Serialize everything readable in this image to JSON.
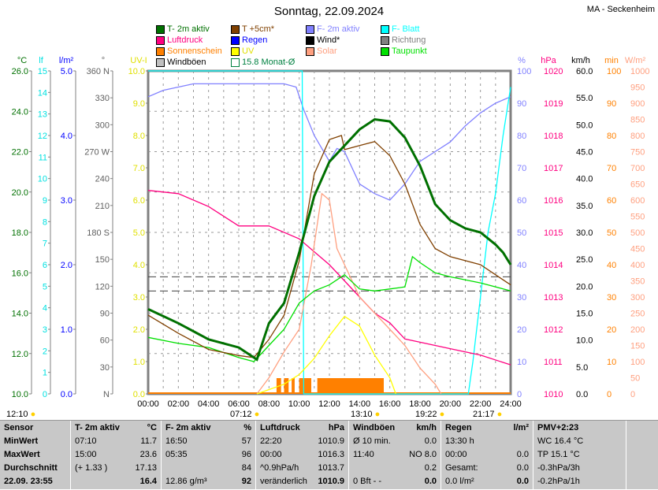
{
  "header": {
    "title": "Sonntag, 22.09.2024",
    "station": "MA - Seckenheim"
  },
  "legend": [
    {
      "label": "T- 2m aktiv",
      "color": "#007000"
    },
    {
      "label": "T +5cm*",
      "color": "#804000"
    },
    {
      "label": "F- 2m aktiv",
      "color": "#8080ff"
    },
    {
      "label": "F- Blatt",
      "color": "#00ffff"
    },
    {
      "label": "Luftdruck",
      "color": "#ff0080"
    },
    {
      "label": "Regen",
      "color": "#0000ff"
    },
    {
      "label": "Wind*",
      "color": "#000000"
    },
    {
      "label": "Richtung",
      "color": "#808080"
    },
    {
      "label": "Sonnenschein",
      "color": "#ff8000"
    },
    {
      "label": "UV",
      "color": "#ffff00"
    },
    {
      "label": "Solar",
      "color": "#ffa080"
    },
    {
      "label": "Taupunkt",
      "color": "#00e000"
    },
    {
      "label": "Windböen",
      "color": "#c0c0c0"
    },
    {
      "label": "15.8 Monat-Ø",
      "color": "#008040"
    }
  ],
  "chart_data": {
    "type": "line",
    "title": "Sonntag, 22.09.2024",
    "xlabel": "",
    "xlim": [
      0,
      24
    ],
    "xticks": [
      "00:00",
      "02:00",
      "04:00",
      "06:00",
      "08:00",
      "10:00",
      "12:00",
      "14:00",
      "16:00",
      "18:00",
      "20:00",
      "22:00",
      "24:00"
    ],
    "axes": [
      {
        "unit": "°C",
        "color": "#007000",
        "min": 10,
        "max": 26,
        "ticks": [
          "10.0",
          "12.0",
          "14.0",
          "16.0",
          "18.0",
          "20.0",
          "22.0",
          "24.0",
          "26.0"
        ]
      },
      {
        "unit": "lf",
        "color": "#00e0e0",
        "min": 0,
        "max": 15,
        "ticks": [
          "0",
          "1",
          "2",
          "3",
          "4",
          "5",
          "6",
          "7",
          "8",
          "9",
          "10",
          "11",
          "12",
          "13",
          "14",
          "15"
        ]
      },
      {
        "unit": "l/m²",
        "color": "#0000ff",
        "min": 0,
        "max": 5,
        "ticks": [
          "0.0",
          "1.0",
          "2.0",
          "3.0",
          "4.0",
          "5.0"
        ]
      },
      {
        "unit": "°",
        "color": "#606060",
        "min": 0,
        "max": 360,
        "ticks": [
          "0",
          "N",
          "30",
          "60",
          "90",
          "120",
          "150",
          "180 S",
          "210",
          "240",
          "270 W",
          "300",
          "330",
          "360 N"
        ]
      },
      {
        "unit": "UV-I",
        "color": "#e0e000",
        "min": 0,
        "max": 10,
        "ticks": [
          "0.0",
          "1.0",
          "2.0",
          "3.0",
          "4.0",
          "5.0",
          "6.0",
          "7.0",
          "8.0",
          "9.0",
          "10.0"
        ]
      },
      {
        "unit": "%",
        "color": "#8080ff",
        "min": 0,
        "max": 100,
        "ticks": [
          "0",
          "10",
          "20",
          "30",
          "40",
          "50",
          "60",
          "70",
          "80",
          "90",
          "100"
        ]
      },
      {
        "unit": "hPa",
        "color": "#ff0080",
        "min": 1010,
        "max": 1020,
        "ticks": [
          "1010",
          "1011",
          "1012",
          "1013",
          "1014",
          "1015",
          "1016",
          "1017",
          "1018",
          "1019",
          "1020"
        ]
      },
      {
        "unit": "km/h",
        "color": "#000000",
        "min": 0,
        "max": 60,
        "ticks": [
          "0.0",
          "5.0",
          "10.0",
          "15.0",
          "20.0",
          "25.0",
          "30.0",
          "35.0",
          "40.0",
          "45.0",
          "50.0",
          "55.0",
          "60.0"
        ]
      },
      {
        "unit": "min",
        "color": "#ff8000",
        "min": 0,
        "max": 100,
        "ticks": [
          "0",
          "10",
          "20",
          "30",
          "40",
          "50",
          "60",
          "70",
          "80",
          "90",
          "100"
        ]
      },
      {
        "unit": "W/m²",
        "color": "#ffa080",
        "min": 0,
        "max": 1000,
        "ticks": [
          "0",
          "50",
          "100",
          "150",
          "200",
          "250",
          "300",
          "350",
          "400",
          "450",
          "500",
          "550",
          "600",
          "650",
          "700",
          "750",
          "800",
          "850",
          "900",
          "950",
          "1000"
        ]
      }
    ],
    "series": [
      {
        "name": "F- 2m aktiv",
        "axis": 5,
        "color": "#8080ff",
        "x": [
          0,
          1,
          3,
          6,
          9,
          9.8,
          10.3,
          11,
          11.5,
          12,
          12.5,
          13,
          14,
          15,
          16,
          17,
          18,
          19,
          20,
          21,
          22,
          23,
          23.5,
          24
        ],
        "y": [
          92,
          94,
          96,
          96,
          96,
          95,
          88,
          80,
          76,
          72,
          76,
          75,
          65,
          62,
          60,
          65,
          72,
          75,
          78,
          83,
          87,
          90,
          91,
          92
        ]
      },
      {
        "name": "F- Blatt",
        "axis": 5,
        "color": "#00ffff",
        "x": [
          0,
          10.2,
          10.3,
          21.2,
          21.5,
          22,
          22.5,
          23,
          23.5,
          24
        ],
        "y": [
          100,
          100,
          0,
          0,
          10,
          30,
          50,
          62,
          80,
          95
        ]
      },
      {
        "name": "Luftdruck",
        "axis": 6,
        "color": "#ff0080",
        "x": [
          0,
          2,
          4,
          6,
          8,
          10,
          11,
          12,
          13,
          14,
          15,
          16,
          17,
          18,
          20,
          22,
          24
        ],
        "y": [
          1016.3,
          1016.2,
          1015.8,
          1015.2,
          1015.2,
          1014.8,
          1014.4,
          1014.0,
          1013.5,
          1013.0,
          1012.5,
          1012.2,
          1011.7,
          1011.6,
          1011.4,
          1011.2,
          1010.9
        ]
      },
      {
        "name": "Solar",
        "axis": 9,
        "color": "#ffa080",
        "x": [
          7.2,
          8,
          9,
          10,
          10.8,
          11.5,
          12,
          12.5,
          13,
          14,
          15,
          16,
          17,
          18,
          19,
          19.4
        ],
        "y": [
          0,
          50,
          130,
          200,
          400,
          620,
          600,
          450,
          400,
          300,
          250,
          200,
          150,
          80,
          30,
          0
        ]
      },
      {
        "name": "UV",
        "axis": 4,
        "color": "#ffff00",
        "x": [
          7.2,
          9,
          10,
          11,
          12,
          13,
          14,
          15,
          16,
          16.4
        ],
        "y": [
          0,
          0.3,
          0.6,
          1.1,
          1.8,
          2.4,
          2.1,
          1.2,
          0.5,
          0
        ]
      },
      {
        "name": "Taupunkt",
        "axis": 0,
        "color": "#00e000",
        "x": [
          0,
          2,
          4,
          6,
          7,
          8,
          9,
          10,
          11,
          12,
          13,
          14,
          15,
          16,
          17,
          17.5,
          18,
          19,
          20,
          22,
          24
        ],
        "y": [
          12.8,
          12.5,
          12.3,
          11.8,
          11.6,
          12.4,
          13.2,
          14.5,
          15.1,
          15.4,
          15.9,
          15.2,
          15.1,
          15.2,
          15.3,
          16.8,
          16.5,
          16.0,
          15.8,
          15.5,
          15.1
        ]
      },
      {
        "name": "T +5cm*",
        "axis": 0,
        "color": "#804000",
        "x": [
          0,
          2,
          4,
          6,
          7,
          8,
          9,
          10,
          11,
          12,
          12.8,
          13,
          14,
          15,
          16,
          17,
          18,
          19,
          20,
          22,
          24
        ],
        "y": [
          13.9,
          13.0,
          12.2,
          11.9,
          11.8,
          12.7,
          13.9,
          16.6,
          20.9,
          22.6,
          22.8,
          22.1,
          22.3,
          22.5,
          21.8,
          20.4,
          18.4,
          17.2,
          16.8,
          16.4,
          15.4
        ]
      },
      {
        "name": "T- 2m aktiv",
        "axis": 0,
        "color": "#007000",
        "x": [
          0,
          2,
          4,
          6,
          7.2,
          8,
          9,
          10,
          11,
          12,
          13,
          14,
          15,
          16,
          17,
          18,
          19,
          20,
          21,
          22,
          23,
          23.5,
          24
        ],
        "y": [
          14.2,
          13.5,
          12.7,
          12.3,
          11.7,
          13.5,
          14.5,
          17.0,
          19.8,
          21.5,
          22.3,
          23.1,
          23.6,
          23.5,
          22.7,
          21.3,
          19.4,
          18.6,
          18.2,
          18.0,
          17.4,
          17.0,
          16.4
        ]
      }
    ],
    "sunshine_intervals": [
      [
        8.5,
        8.8
      ],
      [
        9.0,
        9.3
      ],
      [
        9.5,
        9.7
      ],
      [
        10.0,
        10.8
      ],
      [
        11.2,
        15.6
      ]
    ],
    "reference_lines": [
      {
        "name": "15.8 Monat-Ø",
        "axis": 0,
        "value": 15.8,
        "color": "#404040"
      },
      {
        "name": "Wind*",
        "axis": 0,
        "value": 15.1,
        "color": "#404040"
      }
    ],
    "markers": [
      {
        "label": "12:10",
        "icon": "moon-icon"
      },
      {
        "label": "07:12",
        "icon": "sunrise-icon"
      },
      {
        "label": "13:10",
        "icon": "moonset-icon"
      },
      {
        "label": "19:22",
        "icon": "sunset-icon"
      },
      {
        "label": "21:17",
        "icon": "moonrise-icon"
      }
    ]
  },
  "table": {
    "cols": [
      {
        "rows": [
          [
            "Sensor",
            ""
          ],
          [
            "MinWert",
            ""
          ],
          [
            "MaxWert",
            ""
          ],
          [
            "Durchschnitt",
            ""
          ],
          [
            "22.09. 23:55",
            ""
          ]
        ]
      },
      {
        "rows": [
          [
            "T- 2m aktiv",
            "°C"
          ],
          [
            "07:10",
            "11.7"
          ],
          [
            "15:00",
            "23.6"
          ],
          [
            "(+ 1.33 )",
            "17.13"
          ],
          [
            "",
            "16.4"
          ]
        ]
      },
      {
        "rows": [
          [
            "F- 2m aktiv",
            "%"
          ],
          [
            "16:50",
            "57"
          ],
          [
            "05:35",
            "96"
          ],
          [
            "",
            "84"
          ],
          [
            "12.86 g/m³",
            "92"
          ]
        ]
      },
      {
        "rows": [
          [
            "Luftdruck",
            "hPa"
          ],
          [
            "22:20",
            "1010.9"
          ],
          [
            "00:00",
            "1016.3"
          ],
          [
            "^0.9hPa/h",
            "1013.7"
          ],
          [
            "veränderlich",
            "1010.9"
          ]
        ]
      },
      {
        "rows": [
          [
            "Windböen",
            "km/h"
          ],
          [
            "Ø 10 min.",
            "0.0"
          ],
          [
            "11:40",
            "NO 8.0"
          ],
          [
            "",
            "0.2"
          ],
          [
            "0 Bft - -",
            "0.0"
          ]
        ]
      },
      {
        "rows": [
          [
            "Regen",
            "l/m²"
          ],
          [
            "13:30 h",
            ""
          ],
          [
            "00:00",
            "0.0"
          ],
          [
            "Gesamt:",
            "0.0"
          ],
          [
            "0.0 l/m²",
            "0.0"
          ]
        ]
      },
      {
        "rows": [
          [
            "PMV+2:23",
            ""
          ],
          [
            "WC 16.4 °C",
            ""
          ],
          [
            "TP 15.1 °C",
            ""
          ],
          [
            "-0.3hPa/3h",
            ""
          ],
          [
            "-0.2hPa/1h",
            ""
          ]
        ]
      }
    ]
  }
}
